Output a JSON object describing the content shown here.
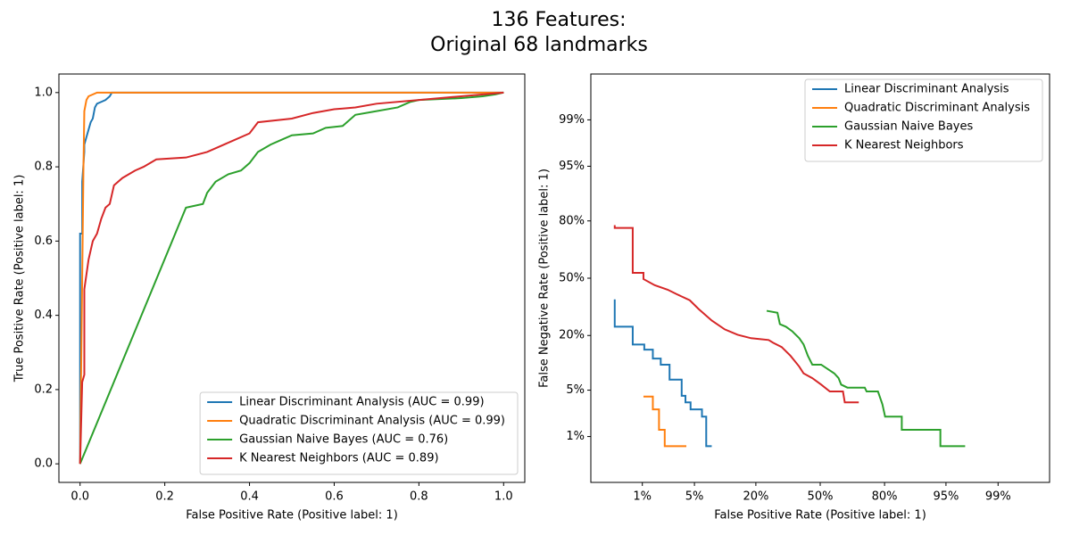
{
  "title": [
    "136 Features:",
    "Original 68 landmarks"
  ],
  "chart_data": [
    {
      "type": "line",
      "xscale": "linear",
      "yscale": "linear",
      "xlabel": "False Positive Rate (Positive label: 1)",
      "ylabel": "True Positive Rate (Positive label: 1)",
      "xlim": [
        -0.05,
        1.05
      ],
      "ylim": [
        -0.05,
        1.05
      ],
      "xticks": [
        {
          "value": 0,
          "label": "0.0"
        },
        0.2,
        0.4,
        0.6,
        0.8,
        {
          "value": 1,
          "label": "1.0"
        }
      ],
      "yticks": [
        {
          "value": 0,
          "label": "0.0"
        },
        0.2,
        0.4,
        0.6,
        0.8,
        {
          "value": 1,
          "label": "1.0"
        }
      ],
      "grid": false,
      "legend": "lower right",
      "series": [
        {
          "name": "Linear Discriminant Analysis (AUC = 0.99)",
          "color": "#1f77b4",
          "x": [
            0,
            0,
            0.005,
            0.005,
            0.01,
            0.01,
            0.015,
            0.02,
            0.025,
            0.03,
            0.035,
            0.04,
            0.05,
            0.06,
            0.07,
            0.075,
            1
          ],
          "values": [
            0,
            0.62,
            0.62,
            0.76,
            0.84,
            0.86,
            0.88,
            0.9,
            0.92,
            0.93,
            0.96,
            0.97,
            0.975,
            0.98,
            0.99,
            1,
            1
          ]
        },
        {
          "name": "Quadratic Discriminant Analysis (AUC = 0.99)",
          "color": "#ff7f0e",
          "x": [
            0,
            0.005,
            0.008,
            0.01,
            0.015,
            0.02,
            0.04,
            1
          ],
          "values": [
            0,
            0.5,
            0.8,
            0.95,
            0.98,
            0.99,
            1,
            1
          ]
        },
        {
          "name": "Gaussian Naive Bayes (AUC = 0.76)",
          "color": "#2ca02c",
          "x": [
            0,
            0.25,
            0.29,
            0.3,
            0.32,
            0.35,
            0.38,
            0.4,
            0.42,
            0.45,
            0.47,
            0.5,
            0.55,
            0.58,
            0.62,
            0.65,
            0.7,
            0.75,
            0.78,
            0.8,
            0.9,
            0.95,
            0.98,
            1
          ],
          "values": [
            0,
            0.69,
            0.7,
            0.73,
            0.76,
            0.78,
            0.79,
            0.81,
            0.84,
            0.86,
            0.87,
            0.885,
            0.89,
            0.905,
            0.91,
            0.94,
            0.95,
            0.96,
            0.975,
            0.98,
            0.985,
            0.99,
            0.995,
            1
          ]
        },
        {
          "name": "K Nearest Neighbors (AUC = 0.89)",
          "color": "#d62728",
          "x": [
            0,
            0.005,
            0.01,
            0.01,
            0.02,
            0.03,
            0.04,
            0.05,
            0.06,
            0.07,
            0.08,
            0.1,
            0.13,
            0.15,
            0.18,
            0.25,
            0.3,
            0.33,
            0.36,
            0.4,
            0.42,
            0.5,
            0.55,
            0.6,
            0.65,
            0.7,
            0.8,
            0.9,
            1
          ],
          "values": [
            0,
            0.22,
            0.24,
            0.47,
            0.55,
            0.6,
            0.62,
            0.66,
            0.69,
            0.7,
            0.75,
            0.77,
            0.79,
            0.8,
            0.82,
            0.825,
            0.84,
            0.855,
            0.87,
            0.89,
            0.92,
            0.93,
            0.945,
            0.955,
            0.96,
            0.97,
            0.98,
            0.99,
            1
          ]
        }
      ]
    },
    {
      "type": "line",
      "xscale": "probit",
      "yscale": "probit",
      "xlabel": "False Positive Rate (Positive label: 1)",
      "ylabel": "False Negative Rate (Positive label: 1)",
      "xlim": [
        0.135,
        99.865
      ],
      "ylim": [
        0.135,
        99.865
      ],
      "xticks": [
        {
          "value": 1,
          "label": "1%"
        },
        {
          "value": 5,
          "label": "5%"
        },
        {
          "value": 20,
          "label": "20%"
        },
        {
          "value": 50,
          "label": "50%"
        },
        {
          "value": 80,
          "label": "80%"
        },
        {
          "value": 95,
          "label": "95%"
        },
        {
          "value": 99,
          "label": "99%"
        }
      ],
      "yticks": [
        {
          "value": 1,
          "label": "1%"
        },
        {
          "value": 5,
          "label": "5%"
        },
        {
          "value": 20,
          "label": "20%"
        },
        {
          "value": 50,
          "label": "50%"
        },
        {
          "value": 80,
          "label": "80%"
        },
        {
          "value": 95,
          "label": "95%"
        },
        {
          "value": 99,
          "label": "99%"
        }
      ],
      "grid": false,
      "legend": "upper right",
      "series": [
        {
          "name": "Linear Discriminant Analysis",
          "color": "#1f77b4",
          "x": [
            0.36,
            0.36,
            0.71,
            0.71,
            1.07,
            1.07,
            1.43,
            1.43,
            1.85,
            1.85,
            2.44,
            2.44,
            3.5,
            3.5,
            3.9,
            3.9,
            4.5,
            4.5,
            6.1,
            6.1,
            6.8,
            6.8,
            7.8
          ],
          "values": [
            37.8,
            23.8,
            23.8,
            16.5,
            16.5,
            14.7,
            14.7,
            11.9,
            11.9,
            10.2,
            10.2,
            6.8,
            6.8,
            4.2,
            4.2,
            3.4,
            3.4,
            2.7,
            2.7,
            2.1,
            2.1,
            0.68,
            0.68
          ]
        },
        {
          "name": "Quadratic Discriminant Analysis",
          "color": "#ff7f0e",
          "x": [
            1.04,
            1.43,
            1.43,
            1.75,
            1.75,
            2.1,
            2.1,
            4.0
          ],
          "values": [
            4.1,
            4.1,
            2.7,
            2.7,
            1.3,
            1.3,
            0.68,
            0.68
          ]
        },
        {
          "name": "Gaussian Naive Bayes",
          "color": "#2ca02c",
          "x": [
            24.2,
            28.8,
            29.9,
            32.7,
            35.7,
            39.2,
            41.4,
            43.6,
            45.9,
            50.5,
            57.3,
            59.5,
            60.8,
            63.9,
            72.0,
            72.8,
            77.5,
            79.2,
            80.2,
            85.7,
            85.7,
            94.2,
            94.2,
            97.1
          ],
          "values": [
            31.6,
            30.6,
            25,
            23.8,
            21.8,
            18.9,
            16.5,
            12.7,
            10.2,
            10.2,
            8.1,
            7.1,
            5.9,
            5.4,
            5.4,
            4.8,
            4.8,
            3.2,
            2.1,
            2.1,
            1.3,
            1.3,
            0.68,
            0.68
          ]
        },
        {
          "name": "K Nearest Neighbors",
          "color": "#d62728",
          "x": [
            0.36,
            0.36,
            0.71,
            0.71,
            1.04,
            1.04,
            1.52,
            2.3,
            3.0,
            4.4,
            5.6,
            7.8,
            10.6,
            14.0,
            18.3,
            25.0,
            26.8,
            30.7,
            34.9,
            39.2,
            41.4,
            45.9,
            50.5,
            55.0,
            61.7,
            62.6,
            69.3
          ],
          "values": [
            78.2,
            77.0,
            77.0,
            53.1,
            53.1,
            49.5,
            45.9,
            43.3,
            40.8,
            37.3,
            32.5,
            26.7,
            22.6,
            20.3,
            18.9,
            18.2,
            17.2,
            15.6,
            12.7,
            9.7,
            8.1,
            7.1,
            5.9,
            4.8,
            4.8,
            3.4,
            3.4
          ]
        }
      ]
    }
  ]
}
